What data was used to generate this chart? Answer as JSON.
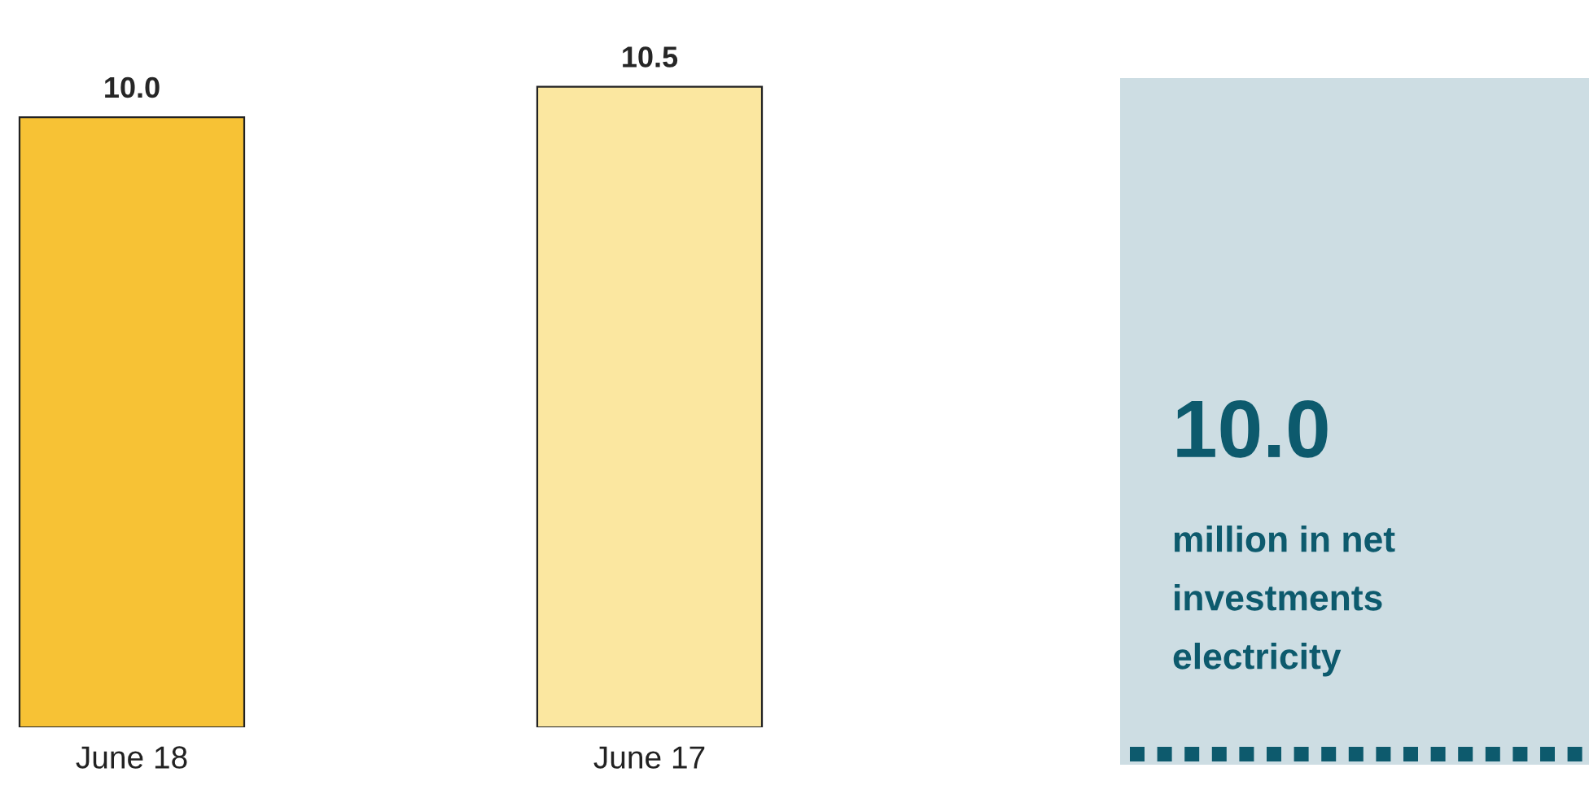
{
  "chart_data": [
    {
      "type": "bar",
      "categories": [
        "June 18",
        "June 17"
      ],
      "values": [
        10.0,
        10.5
      ],
      "colors": [
        "#f7c235",
        "#fbe7a0"
      ],
      "value_labels": [
        "10.0",
        "10.5"
      ]
    },
    {
      "type": "other",
      "title": "10.0",
      "annotations": [
        "million in net",
        "investments",
        "electricity"
      ]
    }
  ]
}
